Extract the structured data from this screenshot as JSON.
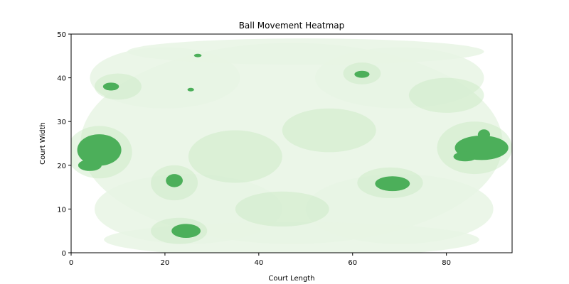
{
  "chart_data": {
    "type": "heatmap",
    "title": "Ball Movement Heatmap",
    "xlabel": "Court Length",
    "ylabel": "Court Width",
    "xlim": [
      0,
      94
    ],
    "ylim": [
      0,
      50
    ],
    "xticks": [
      0,
      20,
      40,
      60,
      80
    ],
    "yticks": [
      0,
      10,
      20,
      30,
      40,
      50
    ],
    "grid": false,
    "colormap": [
      "#ffffff",
      "#e8f5e4",
      "#c7e9c0",
      "#4caf5a"
    ],
    "density_low": [
      {
        "x": 47,
        "y": 25,
        "rx": 45,
        "ry": 23
      },
      {
        "x": 20,
        "y": 40,
        "rx": 16,
        "ry": 7
      },
      {
        "x": 70,
        "y": 40,
        "rx": 18,
        "ry": 7
      },
      {
        "x": 25,
        "y": 10,
        "rx": 20,
        "ry": 8
      },
      {
        "x": 70,
        "y": 10,
        "rx": 20,
        "ry": 8
      },
      {
        "x": 47,
        "y": 3,
        "rx": 40,
        "ry": 4
      },
      {
        "x": 50,
        "y": 46,
        "rx": 38,
        "ry": 3
      }
    ],
    "density_mid": [
      {
        "x": 6,
        "y": 23,
        "rx": 7,
        "ry": 6
      },
      {
        "x": 86,
        "y": 24,
        "rx": 8,
        "ry": 6
      },
      {
        "x": 23,
        "y": 5,
        "rx": 6,
        "ry": 3
      },
      {
        "x": 22,
        "y": 16,
        "rx": 5,
        "ry": 4
      },
      {
        "x": 68,
        "y": 16,
        "rx": 7,
        "ry": 3.5
      },
      {
        "x": 10,
        "y": 38,
        "rx": 5,
        "ry": 3
      },
      {
        "x": 62,
        "y": 41,
        "rx": 4,
        "ry": 2.5
      },
      {
        "x": 35,
        "y": 22,
        "rx": 10,
        "ry": 6
      },
      {
        "x": 55,
        "y": 28,
        "rx": 10,
        "ry": 5
      },
      {
        "x": 45,
        "y": 10,
        "rx": 10,
        "ry": 4
      },
      {
        "x": 80,
        "y": 36,
        "rx": 8,
        "ry": 4
      }
    ],
    "density_high": [
      {
        "x": 6,
        "y": 23.5,
        "rx": 4.7,
        "ry": 3.6
      },
      {
        "x": 4,
        "y": 20,
        "rx": 2.5,
        "ry": 1.3
      },
      {
        "x": 87.5,
        "y": 24,
        "rx": 5.7,
        "ry": 2.8
      },
      {
        "x": 84,
        "y": 22,
        "rx": 2.5,
        "ry": 1.1
      },
      {
        "x": 88,
        "y": 27,
        "rx": 1.3,
        "ry": 1.2
      },
      {
        "x": 68.5,
        "y": 15.8,
        "rx": 3.7,
        "ry": 1.7
      },
      {
        "x": 22,
        "y": 16.5,
        "rx": 1.8,
        "ry": 1.5
      },
      {
        "x": 24.5,
        "y": 5,
        "rx": 3.1,
        "ry": 1.6
      },
      {
        "x": 8.5,
        "y": 38,
        "rx": 1.7,
        "ry": 0.9
      },
      {
        "x": 62,
        "y": 40.8,
        "rx": 1.6,
        "ry": 0.8
      },
      {
        "x": 27,
        "y": 45.1,
        "rx": 0.8,
        "ry": 0.4
      },
      {
        "x": 25.5,
        "y": 37.3,
        "rx": 0.7,
        "ry": 0.4
      }
    ]
  }
}
